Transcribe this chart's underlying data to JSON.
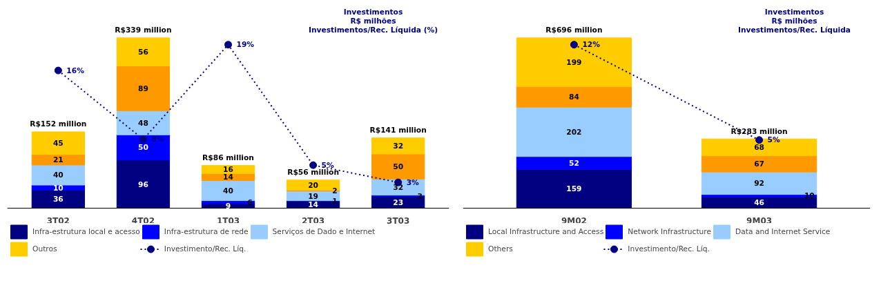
{
  "chart_data": [
    {
      "type": "bar",
      "stacked": true,
      "categories": [
        "3T02",
        "4T02",
        "1T03",
        "2T03",
        "3T03"
      ],
      "series": [
        {
          "name": "Infra-estrutura local e acesso",
          "color": "#000080",
          "values": [
            36,
            96,
            9,
            14,
            23
          ]
        },
        {
          "name": "Infra-estrutura de rede",
          "color": "#0000ff",
          "values": [
            10,
            50,
            6,
            1,
            3
          ]
        },
        {
          "name": "Serviços de Dado e Internet",
          "color": "#99ccff",
          "values": [
            40,
            48,
            40,
            19,
            32
          ]
        },
        {
          "color": "#ff9900",
          "values": [
            21,
            89,
            14,
            2,
            50
          ]
        },
        {
          "name": "Outros",
          "color": "#ffcc00",
          "values": [
            45,
            56,
            16,
            20,
            32
          ]
        },
        {
          "name": "Investimento/Rec. Líq.",
          "type": "line",
          "axis": "y2",
          "color": "#000080",
          "marker": "circle",
          "line_style": "dotted",
          "values": [
            16,
            8,
            19,
            5,
            3
          ],
          "value_labels": [
            "16%",
            "8%",
            "19%",
            "5%",
            "3%"
          ]
        }
      ],
      "data_labels": true,
      "totals": [
        "R$152 million",
        "R$339 million",
        "R$86 million",
        "R$56 million",
        "R$141 million"
      ],
      "annotations": [
        "Investimentos",
        "R$ milhões",
        "Investimentos/Rec. Líquida (%)"
      ],
      "legend": "bottom",
      "tick_labels": "x"
    },
    {
      "type": "bar",
      "stacked": true,
      "categories": [
        "9M02",
        "9M03"
      ],
      "series": [
        {
          "name": "Local Infrastructure and Access",
          "color": "#000080",
          "values": [
            159,
            46
          ]
        },
        {
          "name": "Network Infrastructure",
          "color": "#0000ff",
          "values": [
            52,
            10
          ]
        },
        {
          "name": "Data and Internet Service",
          "color": "#99ccff",
          "values": [
            202,
            92
          ]
        },
        {
          "color": "#ff9900",
          "values": [
            84,
            67
          ]
        },
        {
          "name": "Others",
          "color": "#ffcc00",
          "values": [
            199,
            68
          ]
        },
        {
          "name": "Investimento/Rec. Líq.",
          "type": "line",
          "axis": "y2",
          "color": "#000080",
          "marker": "circle",
          "line_style": "dotted",
          "values": [
            12,
            5
          ],
          "value_labels": [
            "12%",
            "5%"
          ]
        }
      ],
      "data_labels": true,
      "totals": [
        "R$696 million",
        "R$283 million"
      ],
      "annotations": [
        "Investimentos",
        "R$ milhões",
        "Investimentos/Rec. Líquida"
      ],
      "legend": "bottom",
      "tick_labels": "x"
    }
  ]
}
